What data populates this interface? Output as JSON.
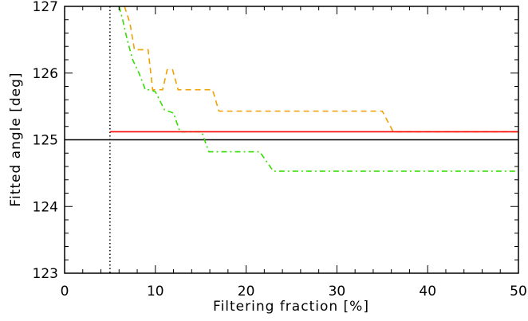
{
  "chart_data": {
    "type": "line",
    "title": "",
    "xlabel": "Filtering fraction [%]",
    "ylabel": "Fitted angle [deg]",
    "xlim": [
      0,
      50
    ],
    "ylim": [
      123,
      127
    ],
    "x_ticks": [
      0,
      10,
      20,
      30,
      40,
      50
    ],
    "x_tick_labels": [
      "0",
      "10",
      "20",
      "30",
      "40",
      "50"
    ],
    "y_ticks": [
      123,
      124,
      125,
      126,
      127
    ],
    "y_tick_labels": [
      "123",
      "124",
      "125",
      "126",
      "127"
    ],
    "grid": false,
    "legend": "none",
    "series": [
      {
        "color": "#f0a000",
        "style": "dashed",
        "points": [
          [
            6.6,
            127.05
          ],
          [
            7.2,
            126.75
          ],
          [
            7.7,
            126.35
          ],
          [
            9.2,
            126.35
          ],
          [
            9.7,
            125.75
          ],
          [
            10.8,
            125.75
          ],
          [
            11.3,
            126.05
          ],
          [
            11.9,
            126.05
          ],
          [
            12.5,
            125.75
          ],
          [
            14.6,
            125.75
          ],
          [
            16.3,
            125.75
          ],
          [
            17.0,
            125.43
          ],
          [
            35.0,
            125.43
          ],
          [
            36.2,
            125.12
          ],
          [
            50.0,
            125.12
          ]
        ]
      },
      {
        "color": "#33dd00",
        "style": "dashdot",
        "points": [
          [
            6.0,
            127.05
          ],
          [
            6.4,
            126.8
          ],
          [
            6.9,
            126.5
          ],
          [
            7.5,
            126.2
          ],
          [
            8.2,
            126.0
          ],
          [
            8.9,
            125.75
          ],
          [
            9.5,
            125.75
          ],
          [
            10.0,
            125.72
          ],
          [
            11.0,
            125.45
          ],
          [
            12.0,
            125.4
          ],
          [
            12.7,
            125.12
          ],
          [
            15.1,
            125.12
          ],
          [
            15.9,
            124.82
          ],
          [
            21.5,
            124.82
          ],
          [
            23.0,
            124.53
          ],
          [
            50.0,
            124.53
          ]
        ]
      },
      {
        "color": "#ff0000",
        "style": "solid",
        "points": [
          [
            5.0,
            125.12
          ],
          [
            50.0,
            125.12
          ]
        ]
      }
    ],
    "reference_lines": [
      {
        "orientation": "horizontal",
        "value": 125.0,
        "color": "#000000",
        "style": "solid"
      },
      {
        "orientation": "vertical",
        "value": 5.0,
        "color": "#000000",
        "style": "dotted"
      }
    ]
  }
}
